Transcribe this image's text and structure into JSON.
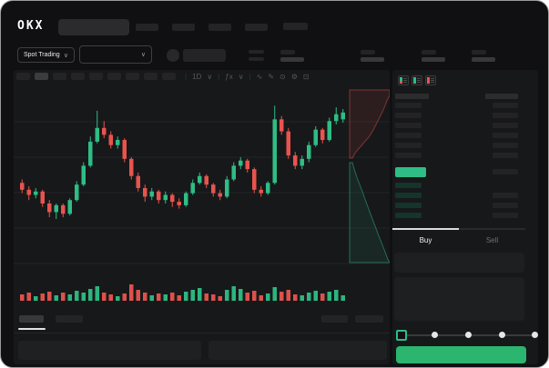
{
  "header": {
    "logo_text": "OKX"
  },
  "subheader": {
    "market_selector_label": "Spot Trading",
    "chevron": "∨"
  },
  "chart_toolbar": {
    "interval_label": "1D",
    "indicator_label": "ƒx",
    "chevron": "∨",
    "separator": "|",
    "icons": [
      "∿",
      "✎",
      "⊙",
      "⚙",
      "⊡"
    ]
  },
  "order_book": {
    "buy_tab_label": "Buy",
    "sell_tab_label": "Sell"
  },
  "colors": {
    "up": "#2ebd85",
    "down": "#e8544e",
    "buy_button": "#2bb56e",
    "ask_tint": "rgba(232,84,78,0.10)",
    "bid_tint": "rgba(46,189,133,0.10)",
    "grid": "#222325"
  },
  "chart_data": {
    "type": "candlestick_with_volume_and_depth",
    "title": "",
    "note": "no numeric axis labels visible; prices on relative 0-100 scale, higher = higher price",
    "x_count": 48,
    "grid": "horizontal-only",
    "candles_ohlc": [
      [
        48,
        50,
        42,
        44
      ],
      [
        44,
        46,
        38,
        41
      ],
      [
        41,
        45,
        39,
        43
      ],
      [
        43,
        44,
        34,
        36
      ],
      [
        36,
        38,
        28,
        31
      ],
      [
        31,
        36,
        27,
        35
      ],
      [
        35,
        36,
        28,
        30
      ],
      [
        30,
        39,
        29,
        38
      ],
      [
        38,
        49,
        37,
        47
      ],
      [
        47,
        60,
        46,
        58
      ],
      [
        58,
        75,
        57,
        72
      ],
      [
        72,
        90,
        71,
        80
      ],
      [
        80,
        84,
        74,
        76
      ],
      [
        76,
        78,
        68,
        70
      ],
      [
        70,
        75,
        68,
        73
      ],
      [
        73,
        74,
        60,
        62
      ],
      [
        62,
        63,
        50,
        52
      ],
      [
        52,
        54,
        43,
        45
      ],
      [
        45,
        47,
        37,
        40
      ],
      [
        40,
        45,
        38,
        43
      ],
      [
        43,
        44,
        36,
        38
      ],
      [
        38,
        43,
        36,
        41
      ],
      [
        41,
        42,
        34,
        37
      ],
      [
        37,
        39,
        33,
        35
      ],
      [
        35,
        43,
        34,
        42
      ],
      [
        42,
        50,
        41,
        48
      ],
      [
        48,
        54,
        47,
        52
      ],
      [
        52,
        53,
        45,
        47
      ],
      [
        47,
        48,
        40,
        42
      ],
      [
        42,
        44,
        38,
        40
      ],
      [
        40,
        52,
        39,
        50
      ],
      [
        50,
        60,
        49,
        58
      ],
      [
        58,
        63,
        56,
        61
      ],
      [
        61,
        62,
        54,
        56
      ],
      [
        56,
        57,
        42,
        44
      ],
      [
        44,
        46,
        40,
        42
      ],
      [
        42,
        49,
        41,
        48
      ],
      [
        48,
        93,
        47,
        85
      ],
      [
        85,
        87,
        76,
        78
      ],
      [
        78,
        80,
        62,
        64
      ],
      [
        64,
        66,
        56,
        58
      ],
      [
        58,
        64,
        56,
        62
      ],
      [
        62,
        72,
        60,
        70
      ],
      [
        70,
        81,
        69,
        79
      ],
      [
        79,
        80,
        71,
        73
      ],
      [
        73,
        86,
        72,
        84
      ],
      [
        84,
        92,
        82,
        88
      ],
      [
        85,
        91,
        83,
        89
      ]
    ],
    "volumes": [
      7,
      9,
      5,
      8,
      10,
      6,
      9,
      7,
      11,
      9,
      13,
      16,
      9,
      7,
      5,
      8,
      18,
      12,
      9,
      6,
      8,
      7,
      9,
      6,
      10,
      12,
      14,
      8,
      7,
      5,
      12,
      16,
      13,
      9,
      11,
      6,
      8,
      15,
      10,
      12,
      7,
      6,
      9,
      11,
      8,
      10,
      12,
      6
    ],
    "depth_sideways": {
      "asks_steps": [
        [
          1.0,
          8
        ],
        [
          0.93,
          14
        ],
        [
          0.88,
          20
        ],
        [
          0.82,
          26
        ],
        [
          0.74,
          33
        ],
        [
          0.66,
          40
        ],
        [
          0.58,
          47
        ],
        [
          0.48,
          54
        ],
        [
          0.36,
          60
        ],
        [
          0.24,
          66
        ],
        [
          0.14,
          71
        ],
        [
          0.07,
          77
        ]
      ],
      "bids_steps": [
        [
          0.07,
          82
        ],
        [
          0.12,
          90
        ],
        [
          0.18,
          98
        ],
        [
          0.25,
          106
        ],
        [
          0.32,
          114
        ],
        [
          0.4,
          124
        ],
        [
          0.5,
          136
        ],
        [
          0.62,
          150
        ],
        [
          0.74,
          164
        ],
        [
          0.85,
          176
        ],
        [
          0.95,
          188
        ],
        [
          1.0,
          192
        ]
      ]
    }
  }
}
